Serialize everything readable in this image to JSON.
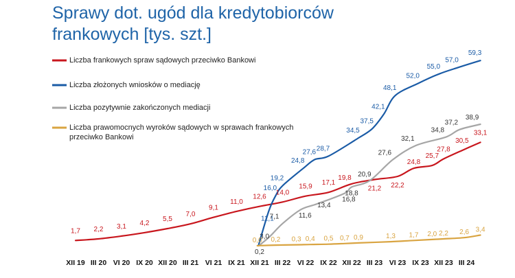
{
  "title": {
    "line1": "Sprawy dot. ugód dla kredytobiorców",
    "line2": "frankowych [tys. szt.]"
  },
  "colors": {
    "title": "#1f64a8",
    "red": "#c8161d",
    "blue": "#1a5ba6",
    "gray": "#a6a6a6",
    "gold": "#d9a441"
  },
  "chart_data": {
    "type": "line",
    "title": "Sprawy dot. ugód dla kredytobiorców frankowych [tys. szt.]",
    "xlabel": "",
    "ylabel": "",
    "ylim": [
      0,
      62
    ],
    "grid": false,
    "legend_position": "top-left",
    "x_tick_labels": [
      "XII 19",
      "III 20",
      "VI 20",
      "IX 20",
      "XII 20",
      "III 21",
      "VI 21",
      "IX 21",
      "XII 21",
      "III 22",
      "VI 22",
      "IX 22",
      "XII 22",
      "III 23",
      "VI 23",
      "IX 23",
      "XII 23",
      "III 24"
    ],
    "series": [
      {
        "name": "Liczba frankowych spraw sądowych przeciwko Bankowi",
        "color": "#c8161d",
        "points": [
          {
            "x": 0,
            "y": 1.7,
            "label": "1,7"
          },
          {
            "x": 1,
            "y": 2.2,
            "label": "2,2"
          },
          {
            "x": 2,
            "y": 3.1,
            "label": "3,1"
          },
          {
            "x": 3,
            "y": 4.2,
            "label": "4,2"
          },
          {
            "x": 4,
            "y": 5.5,
            "label": "5,5"
          },
          {
            "x": 5,
            "y": 7.0,
            "label": "7,0"
          },
          {
            "x": 6,
            "y": 9.1,
            "label": "9,1"
          },
          {
            "x": 7,
            "y": 11.0,
            "label": "11,0"
          },
          {
            "x": 8,
            "y": 12.6,
            "label": "12,6"
          },
          {
            "x": 9,
            "y": 14.0,
            "label": "14,0"
          },
          {
            "x": 10,
            "y": 15.9,
            "label": "15,9"
          },
          {
            "x": 11,
            "y": 17.1,
            "label": "17,1"
          },
          {
            "x": 12,
            "y": 19.8,
            "label": "19,8"
          },
          {
            "x": 13,
            "y": 21.2,
            "label": "21,2"
          },
          {
            "x": 14,
            "y": 22.2,
            "label": "22,2"
          },
          {
            "x": 14.7,
            "y": 24.8,
            "label": "24,8"
          },
          {
            "x": 15.5,
            "y": 25.7,
            "label": "25,7"
          },
          {
            "x": 16,
            "y": 27.8,
            "label": "27,8"
          },
          {
            "x": 16.8,
            "y": 30.5,
            "label": "30,5"
          },
          {
            "x": 17.6,
            "y": 33.1,
            "label": "33,1"
          }
        ]
      },
      {
        "name": "Liczba złożonych wniosków o mediację",
        "color": "#1a5ba6",
        "points": [
          {
            "x": 7.95,
            "y": 0,
            "label": ""
          },
          {
            "x": 8.4,
            "y": 11.1,
            "label": "11,1"
          },
          {
            "x": 8.7,
            "y": 16.0,
            "label": "16,0"
          },
          {
            "x": 9,
            "y": 19.2,
            "label": "19,2"
          },
          {
            "x": 9.9,
            "y": 24.8,
            "label": "24,8"
          },
          {
            "x": 10.4,
            "y": 27.6,
            "label": "27,6"
          },
          {
            "x": 11,
            "y": 28.7,
            "label": "28,7"
          },
          {
            "x": 12.3,
            "y": 34.5,
            "label": "34,5"
          },
          {
            "x": 12.9,
            "y": 37.5,
            "label": "37,5"
          },
          {
            "x": 13.4,
            "y": 42.1,
            "label": "42,1"
          },
          {
            "x": 13.9,
            "y": 48.1,
            "label": "48,1"
          },
          {
            "x": 14.9,
            "y": 52.0,
            "label": "52,0"
          },
          {
            "x": 15.8,
            "y": 55.0,
            "label": "55,0"
          },
          {
            "x": 16.6,
            "y": 57.0,
            "label": "57,0"
          },
          {
            "x": 17.6,
            "y": 59.3,
            "label": "59,3"
          }
        ]
      },
      {
        "name": "Liczba pozytywnie zakończonych mediacji",
        "color": "#a6a6a6",
        "points": [
          {
            "x": 8,
            "y": 0.2,
            "label": "0,2"
          },
          {
            "x": 8.45,
            "y": 3.0,
            "label": "3,0"
          },
          {
            "x": 9,
            "y": 7.1,
            "label": "7,1"
          },
          {
            "x": 9.8,
            "y": 11.6,
            "label": "11,6"
          },
          {
            "x": 10.5,
            "y": 13.4,
            "label": "13,4"
          },
          {
            "x": 11.7,
            "y": 16.8,
            "label": "16,8"
          },
          {
            "x": 12,
            "y": 18.8,
            "label": "18,8"
          },
          {
            "x": 12.8,
            "y": 20.9,
            "label": "20,9"
          },
          {
            "x": 13.8,
            "y": 27.6,
            "label": "27,6"
          },
          {
            "x": 14.8,
            "y": 32.1,
            "label": "32,1"
          },
          {
            "x": 16.1,
            "y": 34.8,
            "label": "34,8"
          },
          {
            "x": 16.7,
            "y": 37.2,
            "label": "37,2"
          },
          {
            "x": 17.6,
            "y": 38.9,
            "label": "38,9"
          }
        ]
      },
      {
        "name": "Liczba prawomocnych wyroków sądowych w sprawach frankowych przeciwko Bankowi",
        "color": "#d9a441",
        "points": [
          {
            "x": 7.9,
            "y": 0.0,
            "label": "0,0"
          },
          {
            "x": 8.7,
            "y": 0.2,
            "label": "0,2"
          },
          {
            "x": 9.6,
            "y": 0.3,
            "label": "0,3"
          },
          {
            "x": 10.2,
            "y": 0.4,
            "label": "0,4"
          },
          {
            "x": 11,
            "y": 0.5,
            "label": "0,5"
          },
          {
            "x": 11.7,
            "y": 0.7,
            "label": "0,7"
          },
          {
            "x": 12.3,
            "y": 0.9,
            "label": "0,9"
          },
          {
            "x": 13.7,
            "y": 1.3,
            "label": "1,3"
          },
          {
            "x": 14.7,
            "y": 1.7,
            "label": "1,7"
          },
          {
            "x": 15.5,
            "y": 2.0,
            "label": "2,0"
          },
          {
            "x": 16,
            "y": 2.2,
            "label": "2,2"
          },
          {
            "x": 16.9,
            "y": 2.6,
            "label": "2,6"
          },
          {
            "x": 17.6,
            "y": 3.4,
            "label": "3,4"
          }
        ]
      }
    ]
  }
}
